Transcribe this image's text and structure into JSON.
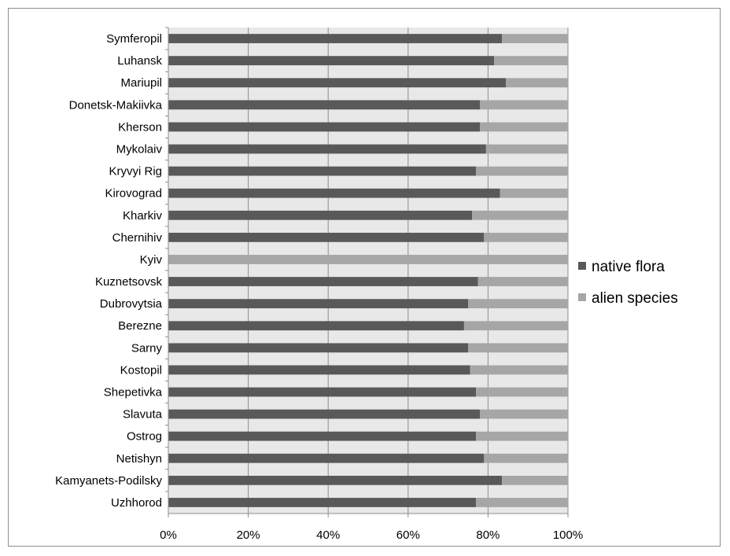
{
  "chart_data": {
    "type": "bar",
    "orientation": "horizontal",
    "stacked": "percent",
    "categories": [
      "Symferopil",
      "Luhansk",
      "Mariupil",
      "Donetsk-Makiivka",
      "Kherson",
      "Mykolaiv",
      "Kryvyi Rig",
      "Kirovograd",
      "Kharkiv",
      "Chernihiv",
      "Kyiv",
      "Kuznetsovsk",
      "Dubrovytsia",
      "Berezne",
      "Sarny",
      "Kostopil",
      "Shepetivka",
      "Slavuta",
      "Ostrog",
      "Netishyn",
      "Kamyanets-Podilsky",
      "Uzhhorod"
    ],
    "series": [
      {
        "name": "native flora",
        "color": "#595959",
        "values": [
          83.5,
          81.5,
          84.5,
          78,
          78,
          79.5,
          77,
          83,
          76,
          79,
          0,
          77.5,
          75,
          74,
          75,
          75.5,
          77,
          78,
          77,
          79,
          83.5,
          77
        ]
      },
      {
        "name": "alien species",
        "color": "#a6a6a6",
        "values": [
          16.5,
          18.5,
          15.5,
          22,
          22,
          20.5,
          23,
          17,
          24,
          21,
          100,
          22.5,
          25,
          26,
          25,
          24.5,
          23,
          22,
          23,
          21,
          16.5,
          23
        ]
      }
    ],
    "x_ticks": [
      "0%",
      "20%",
      "40%",
      "60%",
      "80%",
      "100%"
    ],
    "xlim": [
      0,
      100
    ],
    "grid": "vertical",
    "legend": "right",
    "plot_background": "#e8e8e8",
    "title": "",
    "xlabel": "",
    "ylabel": ""
  }
}
